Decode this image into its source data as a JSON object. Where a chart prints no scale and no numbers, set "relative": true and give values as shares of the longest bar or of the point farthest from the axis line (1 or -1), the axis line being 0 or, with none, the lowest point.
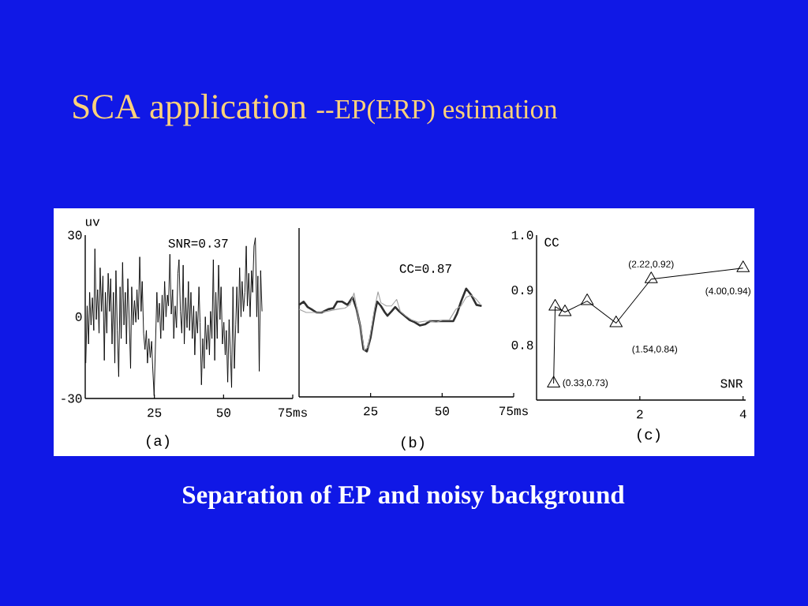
{
  "chart_data": [
    {
      "type": "line",
      "title": "SCA application",
      "subtitle": "--EP(ERP) estimation",
      "ylabel": "uv",
      "x": [
        0.2,
        0.7,
        1.2,
        1.6,
        2.1,
        2.6,
        3.1,
        3.5,
        4.0,
        4.5,
        5.0,
        5.4,
        5.9,
        6.4,
        6.9,
        7.3,
        7.8,
        8.3,
        8.8,
        9.2,
        9.7,
        10.2,
        10.7,
        11.1,
        11.6,
        12.1,
        12.6,
        13.0,
        13.5,
        14.0,
        14.5,
        14.9,
        15.4,
        15.9,
        16.4,
        16.8,
        17.3,
        17.8,
        18.3,
        18.7,
        19.2,
        19.7,
        20.2,
        20.6,
        21.1,
        21.6,
        22.1,
        22.5,
        23.0,
        23.5,
        24.0,
        24.4,
        24.9,
        25.4,
        25.9,
        26.3,
        26.8,
        27.3,
        27.8,
        28.2,
        28.7,
        29.2,
        29.7,
        30.1,
        30.6,
        31.1,
        31.6,
        32.0,
        32.5,
        33.0,
        33.5,
        33.9,
        34.4,
        34.9,
        35.4,
        35.8,
        36.3,
        36.8,
        37.3,
        37.7,
        38.2,
        38.7,
        39.2,
        39.6,
        40.1,
        40.6,
        41.1,
        41.5,
        42.0,
        42.5,
        43.0,
        43.4,
        43.9,
        44.4,
        44.9,
        45.3,
        45.8,
        46.3,
        46.8,
        47.2,
        47.7,
        48.2,
        48.7,
        49.1,
        49.6,
        50.1,
        50.6,
        51.0,
        51.5,
        52.0,
        52.5,
        52.9,
        53.4,
        53.9,
        54.4,
        54.8,
        55.3,
        55.8,
        56.3,
        56.7,
        57.2,
        57.7,
        58.2,
        58.6,
        59.1,
        59.6,
        60.1,
        60.5,
        61.0,
        61.5,
        62.0,
        62.4,
        62.9,
        63.4,
        63.9
      ],
      "series": [
        {
          "color": "#000000",
          "values": [
            -17,
            4,
            -10,
            9,
            -3,
            7,
            -5,
            25,
            -1,
            10,
            -6,
            18,
            2,
            15,
            -16,
            9,
            -6,
            16,
            2,
            14,
            -10,
            9,
            -17,
            17,
            -5,
            -22,
            11,
            -8,
            20,
            -3,
            9,
            -10,
            14,
            -1,
            -19,
            11,
            -3,
            6,
            -2,
            10,
            -1,
            22,
            2,
            13,
            -6,
            -12,
            -5,
            -17,
            -8,
            -15,
            -9,
            -19,
            -29,
            -10,
            9,
            -2,
            5,
            -8,
            8,
            -5,
            13,
            0,
            8,
            4,
            23,
            1,
            10,
            -8,
            4,
            -4,
            16,
            21,
            2,
            -6,
            19,
            -10,
            7,
            -4,
            13,
            -5,
            9,
            -8,
            4,
            -14,
            2,
            -6,
            11,
            -2,
            -25,
            -8,
            -19,
            0,
            -12,
            -3,
            -14,
            2,
            -8,
            21,
            -16,
            9,
            -8,
            19,
            -1,
            11,
            -10,
            -2,
            -14,
            -5,
            -24,
            -1,
            -14,
            -26,
            11,
            -19,
            -3,
            11,
            -6,
            18,
            0,
            13,
            2,
            9,
            26,
            4,
            16,
            0,
            17,
            9,
            26,
            29,
            0,
            15,
            -20,
            17,
            2
          ]
        }
      ],
      "xlim": [
        0,
        75
      ],
      "xticks": [
        25,
        50,
        {
          "value": 75,
          "label": "75ms"
        }
      ],
      "ylim": [
        -30,
        30
      ],
      "yticks": [
        -30,
        0,
        30
      ],
      "annotations": [
        "SNR=0.37",
        "(a)",
        "Separation of EP and noisy background"
      ]
    },
    {
      "type": "line",
      "relative": true,
      "series": [
        {
          "color": "#303030",
          "x": [
            0,
            1.6,
            3.0,
            4.3,
            6.1,
            7.9,
            10.2,
            12.0,
            13.3,
            15.1,
            16.9,
            18.7,
            20.1,
            21.4,
            22.5,
            23.7,
            25.0,
            26.4,
            27.3,
            28.6,
            30.0,
            30.9,
            32.3,
            33.6,
            35.0,
            36.8,
            38.6,
            40.4,
            42.2,
            44.0,
            45.8,
            47.6,
            49.4,
            51.2,
            53.9,
            55.2,
            56.6,
            58.4,
            60.2,
            62.0,
            63.8
          ],
          "values": [
            0.85,
            0.88,
            0.83,
            0.81,
            0.78,
            0.78,
            0.81,
            0.82,
            0.88,
            0.88,
            0.85,
            0.92,
            0.81,
            0.65,
            0.44,
            0.42,
            0.55,
            0.77,
            0.88,
            0.84,
            0.78,
            0.75,
            0.79,
            0.83,
            0.79,
            0.75,
            0.71,
            0.69,
            0.66,
            0.67,
            0.7,
            0.7,
            0.7,
            0.7,
            0.7,
            0.77,
            0.88,
            1.0,
            0.94,
            0.85,
            0.84
          ]
        },
        {
          "color": "#a0a0a0",
          "x": [
            0,
            2.5,
            6.1,
            9.7,
            13.3,
            16.0,
            17.8,
            19.2,
            20.5,
            21.9,
            22.8,
            24.1,
            25.5,
            26.4,
            27.6,
            28.6,
            30.5,
            32.3,
            34.1,
            35.4,
            37.2,
            39.5,
            41.7,
            44.0,
            45.8,
            48.0,
            50.3,
            52.5,
            54.8,
            56.6,
            58.4,
            60.2,
            62.0,
            63.3
          ],
          "values": [
            0.81,
            0.78,
            0.78,
            0.79,
            0.81,
            0.82,
            0.85,
            0.96,
            0.77,
            0.58,
            0.43,
            0.46,
            0.67,
            0.82,
            0.97,
            0.87,
            0.84,
            0.84,
            0.9,
            0.79,
            0.75,
            0.71,
            0.69,
            0.7,
            0.7,
            0.69,
            0.71,
            0.71,
            0.81,
            0.84,
            0.92,
            0.94,
            0.9,
            0.86
          ]
        }
      ],
      "xlim": [
        0,
        75
      ],
      "xticks": [
        25,
        50,
        {
          "value": 75,
          "label": "75ms"
        }
      ],
      "annotations": [
        "CC=0.87",
        "(b)"
      ]
    },
    {
      "type": "line",
      "xlabel": "SNR",
      "ylabel": "CC",
      "marker": "triangle",
      "x": [
        0.33,
        0.36,
        0.55,
        0.98,
        1.54,
        2.22,
        4.0
      ],
      "series": [
        {
          "color": "#000000",
          "values": [
            0.73,
            0.87,
            0.86,
            0.88,
            0.84,
            0.92,
            0.94
          ]
        }
      ],
      "xlim": [
        0,
        4.05
      ],
      "xticks": [
        2,
        4
      ],
      "ylim": [
        0.7,
        1.0
      ],
      "yticks": [
        0.8,
        0.9,
        {
          "value": 1.0,
          "label": "1.0"
        }
      ],
      "annotations": [
        {
          "text": "(0.33,0.73)",
          "x": 0.33,
          "y": 0.73
        },
        {
          "text": "(1.54,0.84)",
          "x": 1.54,
          "y": 0.84
        },
        {
          "text": "(2.22,0.92)",
          "x": 2.22,
          "y": 0.92
        },
        {
          "text": "(4.00,0.94)",
          "x": 4.0,
          "y": 0.94
        },
        "(c)"
      ]
    }
  ]
}
